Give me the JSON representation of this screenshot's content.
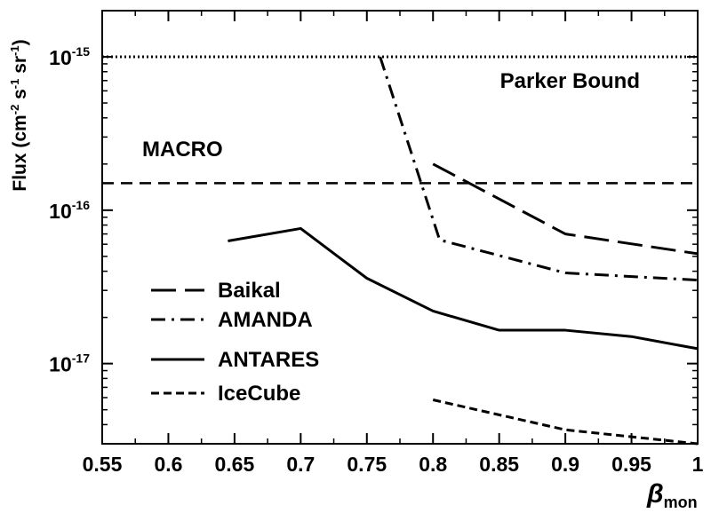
{
  "chart_data": {
    "type": "line",
    "title": "",
    "xlabel": {
      "main": "β",
      "sub": "mon"
    },
    "ylabel": {
      "parts": [
        "Flux (cm",
        "-2",
        " s",
        "-1",
        " sr",
        "-1",
        ")"
      ]
    },
    "xlim": [
      0.55,
      1.0
    ],
    "ylim": [
      3e-18,
      2e-15
    ],
    "yscale": "log",
    "xticks": [
      0.55,
      0.6,
      0.65,
      0.7,
      0.75,
      0.8,
      0.85,
      0.9,
      0.95,
      1.0
    ],
    "xtick_labels": [
      "0.55",
      "0.6",
      "0.65",
      "0.7",
      "0.75",
      "0.8",
      "0.85",
      "0.9",
      "0.95",
      "1"
    ],
    "yticks": [
      {
        "base": "10",
        "exp": "-15",
        "value": 1e-15
      },
      {
        "base": "10",
        "exp": "-16",
        "value": 1e-16
      },
      {
        "base": "10",
        "exp": "-17",
        "value": 1e-17
      }
    ],
    "grid": false,
    "legend_position": "lower-left",
    "series": [
      {
        "name": "Baikal",
        "style": "long-dash",
        "x": [
          0.8,
          0.9,
          1.0
        ],
        "y": [
          2e-16,
          7e-17,
          5.2e-17
        ]
      },
      {
        "name": "AMANDA",
        "style": "dash-dot",
        "x": [
          0.76,
          0.805,
          0.9,
          1.0
        ],
        "y": [
          1e-15,
          6.4e-17,
          3.9e-17,
          3.5e-17
        ]
      },
      {
        "name": "ANTARES",
        "style": "solid",
        "x": [
          0.645,
          0.7,
          0.75,
          0.8,
          0.85,
          0.9,
          0.95,
          1.0
        ],
        "y": [
          6.3e-17,
          7.6e-17,
          3.6e-17,
          2.2e-17,
          1.65e-17,
          1.65e-17,
          1.5e-17,
          1.25e-17
        ]
      },
      {
        "name": "IceCube",
        "style": "short-dash",
        "x": [
          0.8,
          0.9,
          1.0
        ],
        "y": [
          5.8e-18,
          3.7e-18,
          3e-18
        ]
      }
    ],
    "reference_lines": [
      {
        "name": "Parker Bound",
        "style": "dotted",
        "y": 1e-15
      },
      {
        "name": "MACRO",
        "style": "dashed",
        "y": 1.5e-16
      }
    ]
  }
}
